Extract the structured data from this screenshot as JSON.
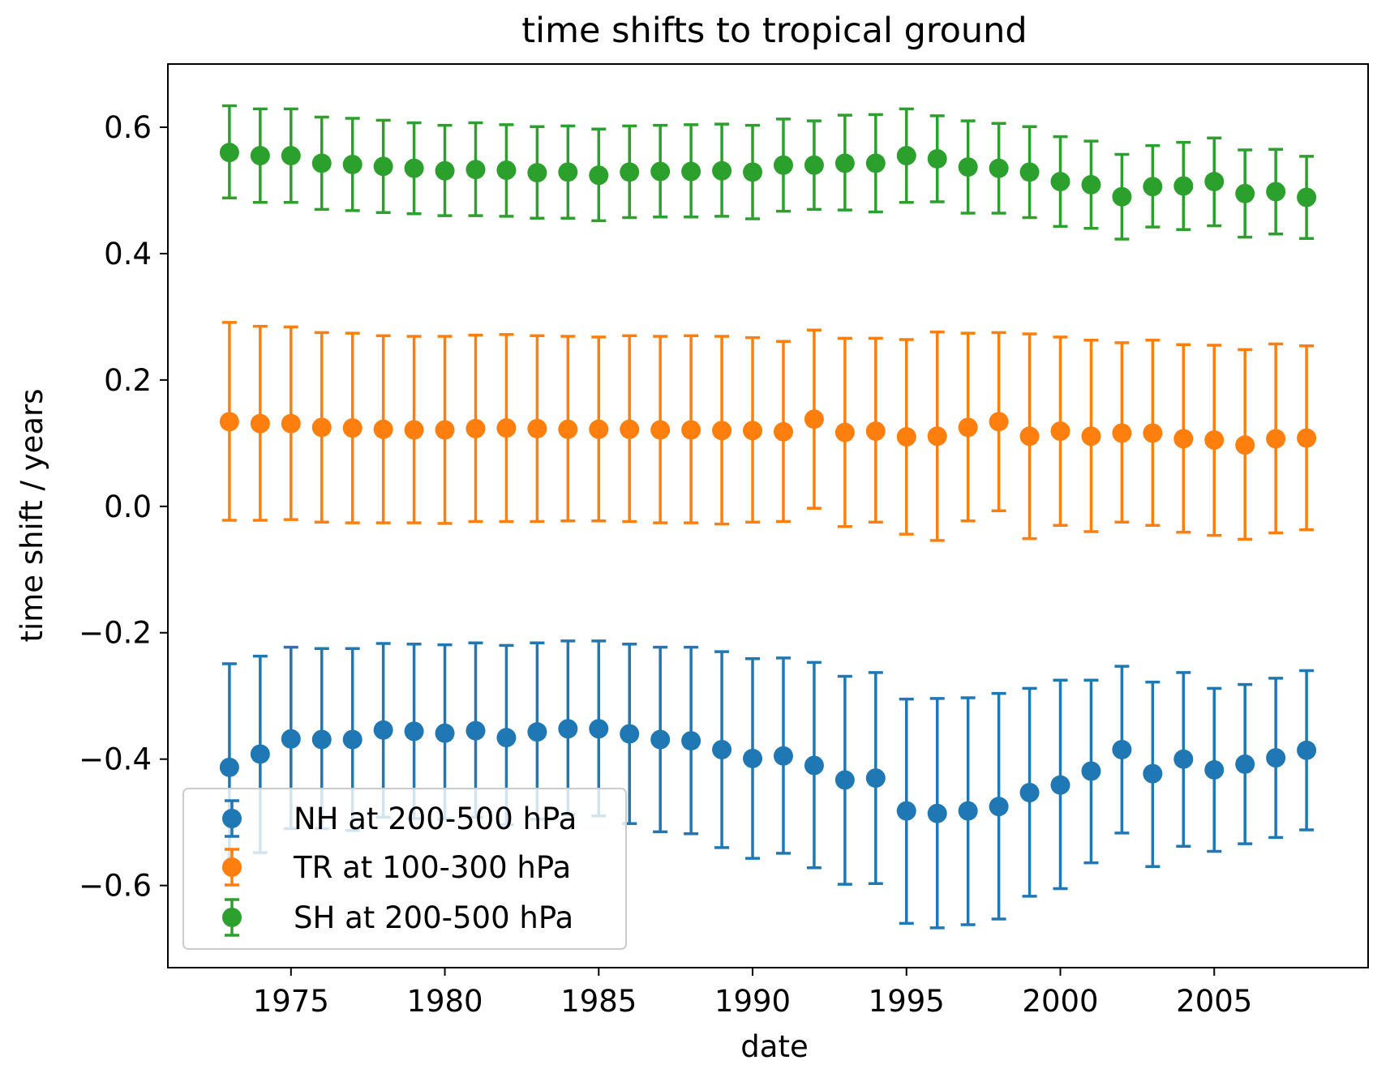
{
  "chart_data": {
    "type": "scatter",
    "title": "time shifts to tropical ground",
    "xlabel": "date",
    "ylabel": "time shift / years",
    "xlim": [
      1971,
      2010
    ],
    "ylim": [
      -0.73,
      0.7
    ],
    "xticks": [
      1975,
      1980,
      1985,
      1990,
      1995,
      2000,
      2005
    ],
    "yticks": [
      0.6,
      0.4,
      0.2,
      0.0,
      -0.2,
      -0.4,
      -0.6
    ],
    "ytick_labels": [
      "0.6",
      "0.4",
      "0.2",
      "0.0",
      "−0.2",
      "−0.4",
      "−0.6"
    ],
    "grid": false,
    "legend_position": "lower-left",
    "x": [
      1973,
      1974,
      1975,
      1976,
      1977,
      1978,
      1979,
      1980,
      1981,
      1982,
      1983,
      1984,
      1985,
      1986,
      1987,
      1988,
      1989,
      1990,
      1991,
      1992,
      1993,
      1994,
      1995,
      1996,
      1997,
      1998,
      1999,
      2000,
      2001,
      2002,
      2003,
      2004,
      2005,
      2006,
      2007,
      2008
    ],
    "series": [
      {
        "name": "NH at 200-500 hPa",
        "color": "#1f77b4",
        "y": [
          -0.413,
          -0.392,
          -0.368,
          -0.369,
          -0.369,
          -0.354,
          -0.356,
          -0.359,
          -0.355,
          -0.366,
          -0.357,
          -0.352,
          -0.352,
          -0.36,
          -0.369,
          -0.371,
          -0.385,
          -0.399,
          -0.395,
          -0.41,
          -0.433,
          -0.43,
          -0.482,
          -0.486,
          -0.482,
          -0.475,
          -0.453,
          -0.441,
          -0.419,
          -0.385,
          -0.423,
          -0.4,
          -0.417,
          -0.408,
          -0.398,
          -0.386
        ],
        "err_low": [
          -0.575,
          -0.548,
          -0.51,
          -0.51,
          -0.513,
          -0.492,
          -0.494,
          -0.495,
          -0.492,
          -0.504,
          -0.495,
          -0.488,
          -0.49,
          -0.502,
          -0.515,
          -0.518,
          -0.54,
          -0.557,
          -0.549,
          -0.572,
          -0.598,
          -0.597,
          -0.66,
          -0.667,
          -0.662,
          -0.653,
          -0.617,
          -0.605,
          -0.564,
          -0.517,
          -0.57,
          -0.538,
          -0.546,
          -0.534,
          -0.524,
          -0.512
        ],
        "err_high": [
          -0.249,
          -0.237,
          -0.223,
          -0.225,
          -0.225,
          -0.217,
          -0.218,
          -0.219,
          -0.216,
          -0.22,
          -0.216,
          -0.213,
          -0.213,
          -0.218,
          -0.223,
          -0.223,
          -0.23,
          -0.241,
          -0.24,
          -0.247,
          -0.269,
          -0.263,
          -0.305,
          -0.304,
          -0.303,
          -0.296,
          -0.288,
          -0.275,
          -0.275,
          -0.253,
          -0.278,
          -0.263,
          -0.288,
          -0.282,
          -0.272,
          -0.26
        ]
      },
      {
        "name": "TR at 100-300 hPa",
        "color": "#ff7f0e",
        "y": [
          0.134,
          0.131,
          0.131,
          0.125,
          0.124,
          0.122,
          0.121,
          0.121,
          0.123,
          0.124,
          0.123,
          0.122,
          0.122,
          0.122,
          0.121,
          0.121,
          0.12,
          0.12,
          0.118,
          0.138,
          0.117,
          0.119,
          0.11,
          0.111,
          0.125,
          0.134,
          0.111,
          0.119,
          0.111,
          0.116,
          0.116,
          0.107,
          0.105,
          0.097,
          0.107,
          0.108
        ],
        "err_low": [
          -0.022,
          -0.022,
          -0.021,
          -0.025,
          -0.026,
          -0.026,
          -0.026,
          -0.027,
          -0.024,
          -0.024,
          -0.024,
          -0.023,
          -0.023,
          -0.024,
          -0.026,
          -0.026,
          -0.028,
          -0.025,
          -0.024,
          -0.003,
          -0.032,
          -0.025,
          -0.044,
          -0.054,
          -0.023,
          -0.007,
          -0.051,
          -0.03,
          -0.04,
          -0.025,
          -0.03,
          -0.041,
          -0.046,
          -0.052,
          -0.042,
          -0.037
        ],
        "err_high": [
          0.291,
          0.285,
          0.284,
          0.275,
          0.274,
          0.27,
          0.269,
          0.269,
          0.271,
          0.272,
          0.27,
          0.269,
          0.268,
          0.27,
          0.269,
          0.27,
          0.269,
          0.267,
          0.261,
          0.279,
          0.266,
          0.266,
          0.264,
          0.276,
          0.274,
          0.275,
          0.273,
          0.268,
          0.263,
          0.259,
          0.263,
          0.256,
          0.255,
          0.248,
          0.257,
          0.254
        ]
      },
      {
        "name": "SH at 200-500 hPa",
        "color": "#2ca02c",
        "y": [
          0.56,
          0.555,
          0.555,
          0.543,
          0.541,
          0.538,
          0.535,
          0.531,
          0.533,
          0.532,
          0.528,
          0.529,
          0.524,
          0.529,
          0.53,
          0.53,
          0.531,
          0.529,
          0.54,
          0.54,
          0.543,
          0.543,
          0.555,
          0.55,
          0.537,
          0.535,
          0.529,
          0.514,
          0.509,
          0.49,
          0.506,
          0.507,
          0.514,
          0.495,
          0.498,
          0.489
        ],
        "err_low": [
          0.488,
          0.481,
          0.481,
          0.47,
          0.468,
          0.465,
          0.463,
          0.46,
          0.46,
          0.459,
          0.456,
          0.456,
          0.452,
          0.457,
          0.458,
          0.458,
          0.459,
          0.455,
          0.467,
          0.47,
          0.469,
          0.466,
          0.481,
          0.482,
          0.464,
          0.464,
          0.457,
          0.443,
          0.44,
          0.423,
          0.442,
          0.438,
          0.444,
          0.426,
          0.431,
          0.424
        ],
        "err_high": [
          0.634,
          0.629,
          0.629,
          0.616,
          0.614,
          0.611,
          0.607,
          0.603,
          0.607,
          0.604,
          0.601,
          0.602,
          0.597,
          0.602,
          0.603,
          0.604,
          0.605,
          0.603,
          0.613,
          0.61,
          0.619,
          0.62,
          0.629,
          0.618,
          0.61,
          0.606,
          0.601,
          0.585,
          0.578,
          0.557,
          0.571,
          0.576,
          0.583,
          0.564,
          0.565,
          0.554
        ]
      }
    ]
  }
}
